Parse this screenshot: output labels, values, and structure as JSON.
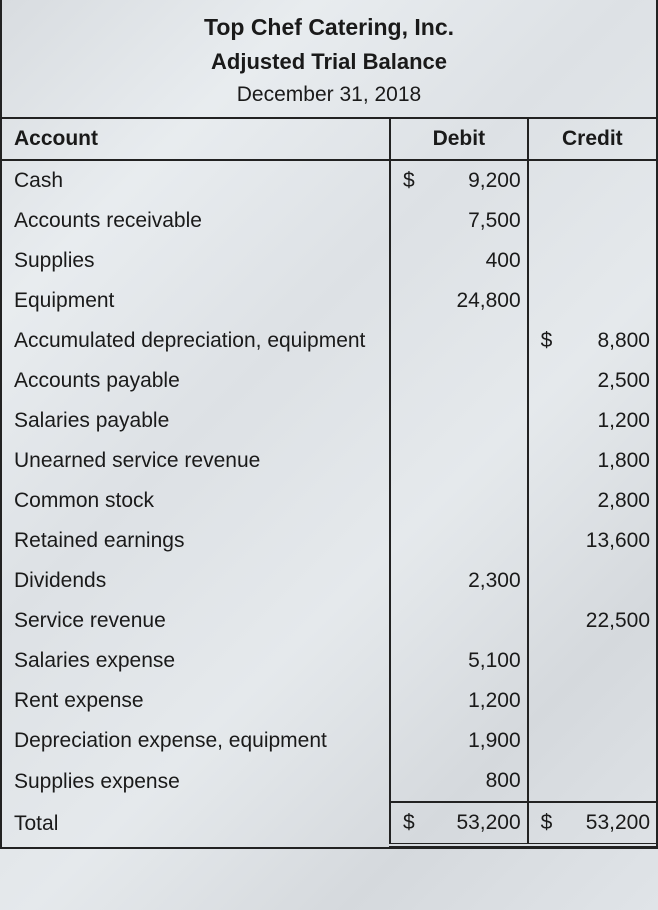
{
  "header": {
    "company": "Top Chef Catering, Inc.",
    "report": "Adjusted Trial Balance",
    "date": "December 31, 2018"
  },
  "columns": {
    "account": "Account",
    "debit": "Debit",
    "credit": "Credit"
  },
  "currency": "$",
  "rows": [
    {
      "account": "Cash",
      "debit_sym": "$",
      "debit": "9,200",
      "credit_sym": "",
      "credit": ""
    },
    {
      "account": "Accounts receivable",
      "debit_sym": "",
      "debit": "7,500",
      "credit_sym": "",
      "credit": ""
    },
    {
      "account": "Supplies",
      "debit_sym": "",
      "debit": "400",
      "credit_sym": "",
      "credit": ""
    },
    {
      "account": "Equipment",
      "debit_sym": "",
      "debit": "24,800",
      "credit_sym": "",
      "credit": ""
    },
    {
      "account": "Accumulated depreciation, equipment",
      "debit_sym": "",
      "debit": "",
      "credit_sym": "$",
      "credit": "8,800"
    },
    {
      "account": "Accounts payable",
      "debit_sym": "",
      "debit": "",
      "credit_sym": "",
      "credit": "2,500"
    },
    {
      "account": "Salaries payable",
      "debit_sym": "",
      "debit": "",
      "credit_sym": "",
      "credit": "1,200"
    },
    {
      "account": "Unearned service revenue",
      "debit_sym": "",
      "debit": "",
      "credit_sym": "",
      "credit": "1,800"
    },
    {
      "account": "Common stock",
      "debit_sym": "",
      "debit": "",
      "credit_sym": "",
      "credit": "2,800"
    },
    {
      "account": "Retained earnings",
      "debit_sym": "",
      "debit": "",
      "credit_sym": "",
      "credit": "13,600"
    },
    {
      "account": "Dividends",
      "debit_sym": "",
      "debit": "2,300",
      "credit_sym": "",
      "credit": ""
    },
    {
      "account": "Service revenue",
      "debit_sym": "",
      "debit": "",
      "credit_sym": "",
      "credit": "22,500"
    },
    {
      "account": "Salaries expense",
      "debit_sym": "",
      "debit": "5,100",
      "credit_sym": "",
      "credit": ""
    },
    {
      "account": "Rent expense",
      "debit_sym": "",
      "debit": "1,200",
      "credit_sym": "",
      "credit": ""
    },
    {
      "account": "Depreciation expense, equipment",
      "debit_sym": "",
      "debit": "1,900",
      "credit_sym": "",
      "credit": ""
    },
    {
      "account": "Supplies expense",
      "debit_sym": "",
      "debit": "800",
      "credit_sym": "",
      "credit": ""
    }
  ],
  "total": {
    "label": "Total",
    "debit_sym": "$",
    "debit": "53,200",
    "credit_sym": "$",
    "credit": "53,200"
  }
}
